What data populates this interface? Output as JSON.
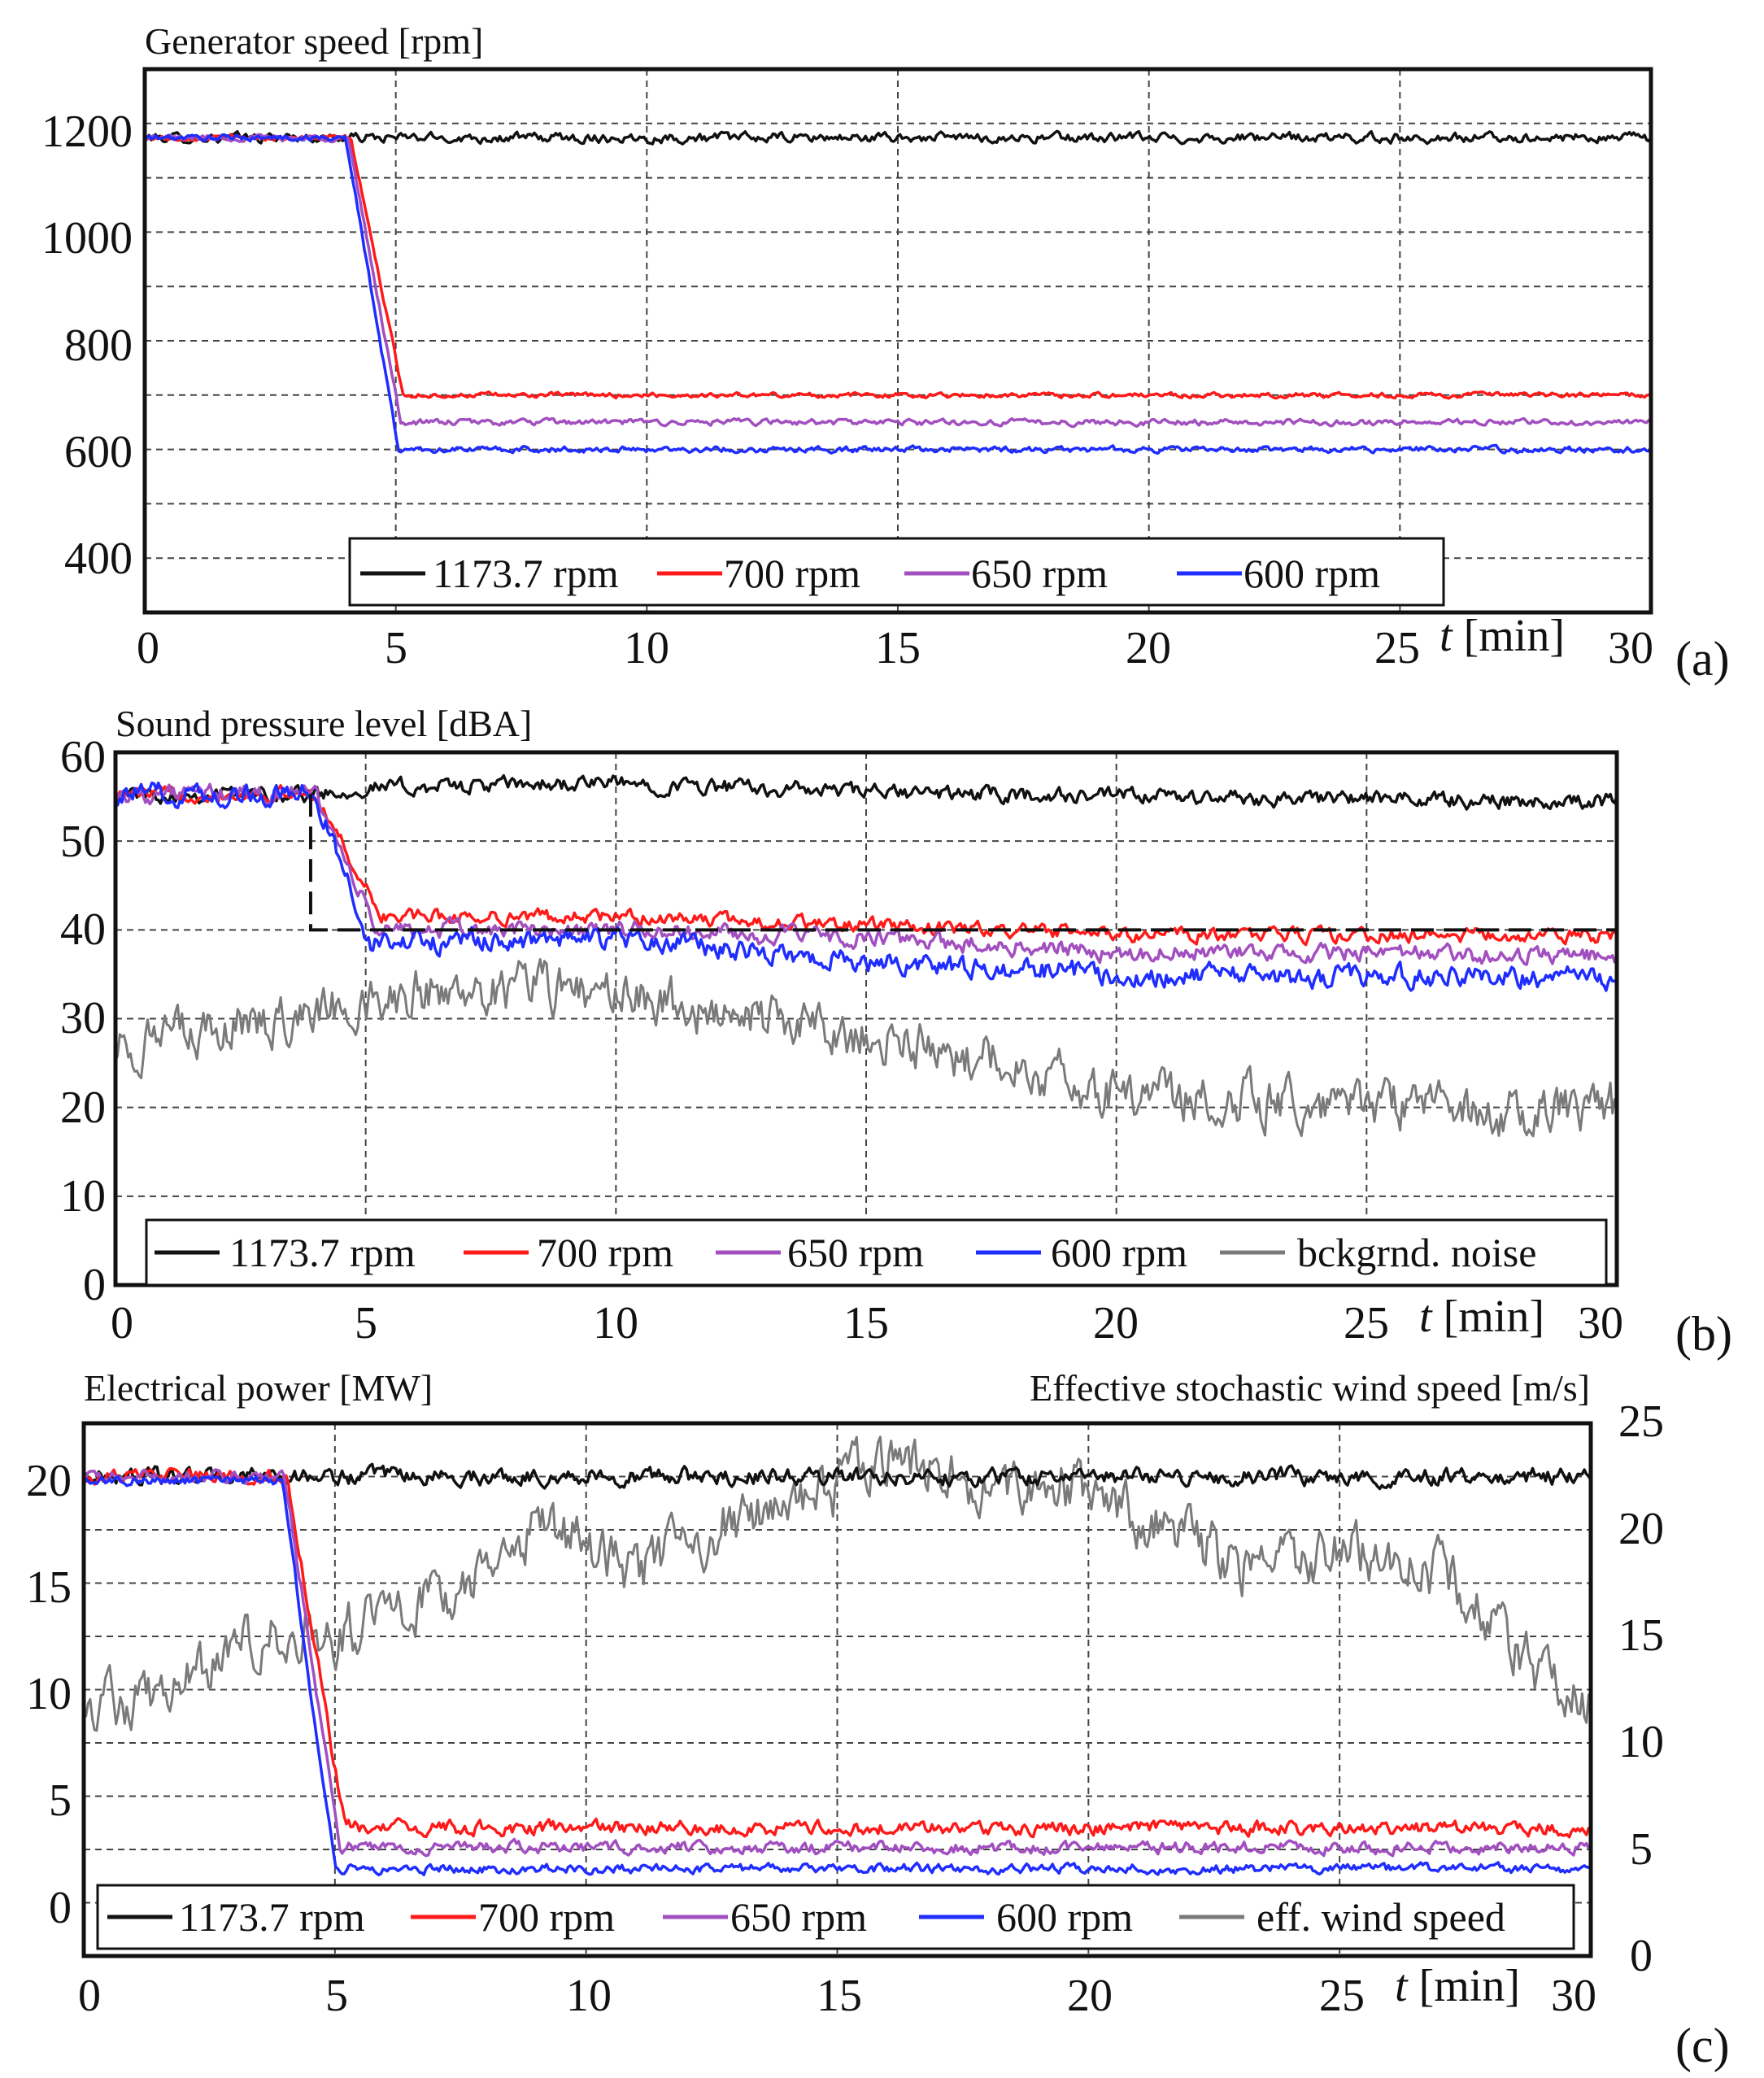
{
  "colors": {
    "black": "#111111",
    "red": "#ff1a1a",
    "purple": "#a24fc0",
    "blue": "#1f2dff",
    "gray": "#7a7a7a",
    "grid": "#444444"
  },
  "chart_data": [
    {
      "type": "line",
      "panel_label": "(a)",
      "title": "Generator speed [rpm]",
      "xlabel": "t [min]",
      "xlabel_var": "t",
      "xlabel_unit": "[min]",
      "xlim": [
        0,
        30
      ],
      "ylim": [
        300,
        1300
      ],
      "xticks": [
        0,
        5,
        10,
        15,
        20,
        25,
        30
      ],
      "yticks": [
        400,
        600,
        800,
        1000,
        1200
      ],
      "ygrid": [
        400,
        500,
        600,
        700,
        800,
        900,
        1000,
        1100,
        1200
      ],
      "grid": true,
      "legend_position": "bottom",
      "series": [
        {
          "name": "1173.7 rpm",
          "color": "#111111",
          "points": [
            [
              0,
              1173.7
            ],
            [
              4,
              1173.7
            ],
            [
              30,
              1173.7
            ]
          ],
          "noise": 8
        },
        {
          "name": "700 rpm",
          "color": "#ff1a1a",
          "points": [
            [
              0,
              1173.7
            ],
            [
              4.1,
              1173.7
            ],
            [
              5.15,
              700
            ],
            [
              30,
              700
            ]
          ],
          "noise": 4
        },
        {
          "name": "650 rpm",
          "color": "#a24fc0",
          "points": [
            [
              0,
              1173.7
            ],
            [
              4.05,
              1173.7
            ],
            [
              5.1,
              650
            ],
            [
              30,
              650
            ]
          ],
          "noise": 5
        },
        {
          "name": "600 rpm",
          "color": "#1f2dff",
          "points": [
            [
              0,
              1173.7
            ],
            [
              4,
              1173.7
            ],
            [
              5.05,
              600
            ],
            [
              30,
              600
            ]
          ],
          "noise": 5
        }
      ]
    },
    {
      "type": "line",
      "panel_label": "(b)",
      "title": "Sound pressure level [dBA]",
      "xlabel": "t [min]",
      "xlabel_var": "t",
      "xlabel_unit": "[min]",
      "xlim": [
        0,
        30
      ],
      "ylim": [
        0,
        60
      ],
      "xticks": [
        0,
        5,
        10,
        15,
        20,
        25,
        30
      ],
      "yticks": [
        0,
        10,
        20,
        30,
        40,
        50,
        60
      ],
      "ygrid": [
        10,
        20,
        30,
        40,
        50
      ],
      "grid": true,
      "legend_position": "bottom",
      "reference_line": {
        "points": [
          [
            3.9,
            55.3
          ],
          [
            3.9,
            40
          ],
          [
            30,
            40
          ]
        ],
        "style": "dashed"
      },
      "series": [
        {
          "name": "1173.7 rpm",
          "color": "#111111",
          "points": [
            [
              0,
              55.3
            ],
            [
              4,
              55.3
            ],
            [
              5,
              56
            ],
            [
              10,
              56.5
            ],
            [
              15,
              55.5
            ],
            [
              20,
              55
            ],
            [
              30,
              54.5
            ]
          ],
          "noise": 0.8
        },
        {
          "name": "700 rpm",
          "color": "#ff1a1a",
          "points": [
            [
              0,
              55.3
            ],
            [
              4,
              55.3
            ],
            [
              5.3,
              41.5
            ],
            [
              10,
              41.5
            ],
            [
              15,
              40.5
            ],
            [
              20,
              39.5
            ],
            [
              30,
              39.3
            ]
          ],
          "noise": 0.7
        },
        {
          "name": "650 rpm",
          "color": "#a24fc0",
          "points": [
            [
              0,
              55.3
            ],
            [
              4,
              55.3
            ],
            [
              5.2,
              40
            ],
            [
              10,
              40
            ],
            [
              15,
              39
            ],
            [
              20,
              37.5
            ],
            [
              30,
              37
            ]
          ],
          "noise": 0.9
        },
        {
          "name": "600 rpm",
          "color": "#1f2dff",
          "points": [
            [
              0,
              55.3
            ],
            [
              4,
              55.3
            ],
            [
              5.1,
              38.5
            ],
            [
              10,
              39
            ],
            [
              15,
              36.5
            ],
            [
              20,
              35
            ],
            [
              30,
              34.5
            ]
          ],
          "noise": 1.1
        },
        {
          "name": "bckgrnd. noise",
          "color": "#7a7a7a",
          "points": [
            [
              0,
              27
            ],
            [
              2,
              28.5
            ],
            [
              4,
              31
            ],
            [
              6,
              33
            ],
            [
              8,
              33.5
            ],
            [
              10,
              33
            ],
            [
              12,
              30.5
            ],
            [
              14,
              29
            ],
            [
              16,
              27
            ],
            [
              18,
              24.5
            ],
            [
              20,
              21.5
            ],
            [
              22,
              21
            ],
            [
              24,
              20
            ],
            [
              26,
              20
            ],
            [
              28,
              19.5
            ],
            [
              30,
              20
            ]
          ],
          "noise": 2.5
        }
      ]
    },
    {
      "type": "line",
      "panel_label": "(c)",
      "title": "Electrical power [MW]",
      "title_right": "Effective stochastic wind speed [m/s]",
      "xlabel": "t [min]",
      "xlabel_var": "t",
      "xlabel_unit": "[min]",
      "xlim": [
        0,
        30
      ],
      "ylim": [
        -2.5,
        22.5
      ],
      "ylim_right": [
        0,
        25
      ],
      "xticks": [
        0,
        5,
        10,
        15,
        20,
        25,
        30
      ],
      "yticks": [
        0,
        5,
        10,
        15,
        20
      ],
      "yticks_right": [
        0,
        5,
        10,
        15,
        20,
        25
      ],
      "ygrid": [
        0,
        2.5,
        5,
        7.5,
        10,
        12.5,
        15,
        17.5,
        20
      ],
      "grid": true,
      "legend_position": "bottom",
      "series": [
        {
          "name": "1173.7 rpm",
          "color": "#111111",
          "points": [
            [
              0,
              20
            ],
            [
              4,
              20
            ],
            [
              30,
              20
            ]
          ],
          "noise": 0.35
        },
        {
          "name": "700 rpm",
          "color": "#ff1a1a",
          "points": [
            [
              0,
              20
            ],
            [
              4.05,
              20
            ],
            [
              5.2,
              3.5
            ],
            [
              30,
              3.5
            ]
          ],
          "noise": 0.3
        },
        {
          "name": "650 rpm",
          "color": "#a24fc0",
          "points": [
            [
              0,
              20
            ],
            [
              4.0,
              20
            ],
            [
              5.1,
              2.6
            ],
            [
              30,
              2.6
            ]
          ],
          "noise": 0.25
        },
        {
          "name": "600 rpm",
          "color": "#1f2dff",
          "points": [
            [
              0,
              19.8
            ],
            [
              3.95,
              19.8
            ],
            [
              5.0,
              1.6
            ],
            [
              30,
              1.6
            ]
          ],
          "noise": 0.2
        },
        {
          "name": "eff. wind speed",
          "color": "#7a7a7a",
          "axis": "right",
          "points": [
            [
              0,
              12
            ],
            [
              1,
              12
            ],
            [
              2,
              12.5
            ],
            [
              3,
              14.5
            ],
            [
              4,
              15.5
            ],
            [
              5,
              15
            ],
            [
              6,
              16
            ],
            [
              7,
              16.5
            ],
            [
              8,
              18
            ],
            [
              9,
              20
            ],
            [
              10,
              19.5
            ],
            [
              11,
              18
            ],
            [
              12,
              19
            ],
            [
              13,
              20.5
            ],
            [
              14,
              21
            ],
            [
              15,
              22
            ],
            [
              16,
              23.5
            ],
            [
              17,
              22.5
            ],
            [
              18,
              22
            ],
            [
              19,
              22.5
            ],
            [
              20,
              21.5
            ],
            [
              21,
              20.5
            ],
            [
              22,
              20
            ],
            [
              23,
              18
            ],
            [
              24,
              18.5
            ],
            [
              25,
              19
            ],
            [
              26,
              18.5
            ],
            [
              27,
              18
            ],
            [
              28,
              15.5
            ],
            [
              29,
              13.5
            ],
            [
              30,
              12
            ]
          ],
          "noise": 1.2
        }
      ]
    }
  ]
}
